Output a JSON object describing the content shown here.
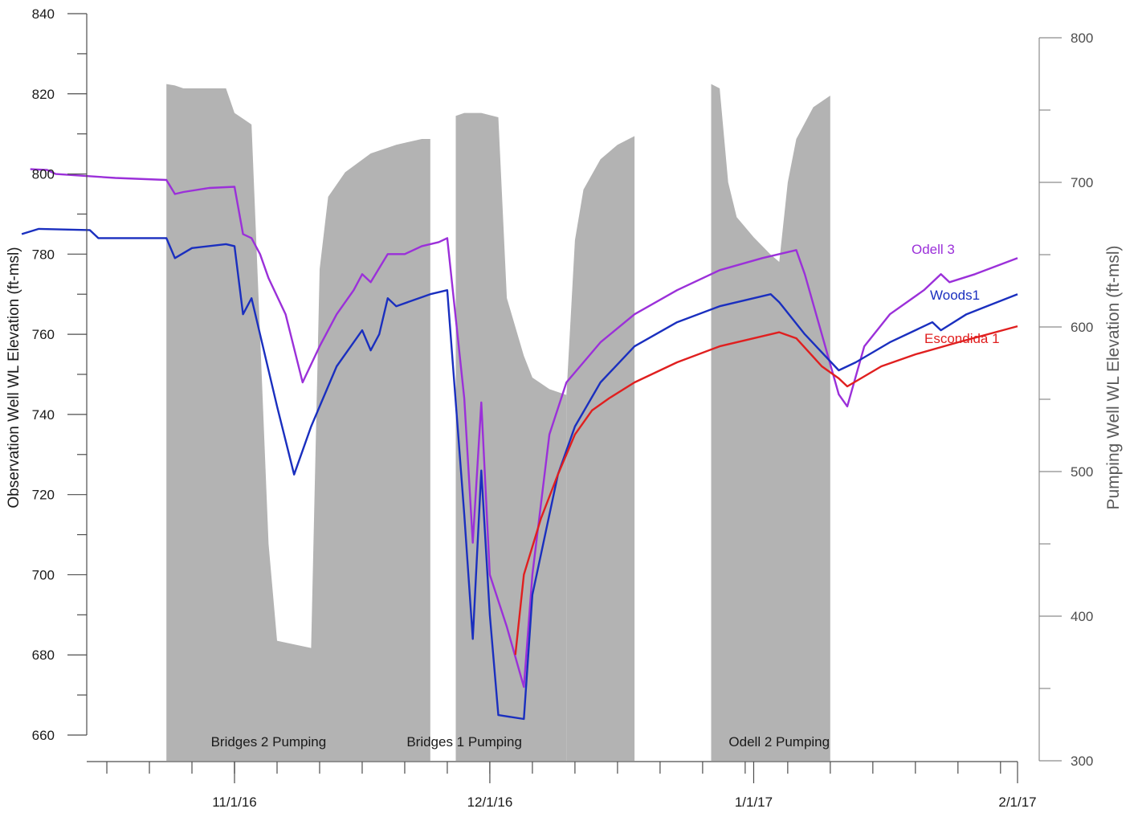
{
  "chart_data": {
    "type": "line",
    "xlabel": "",
    "ylabel": "Observation Well WL Elevation (ft-msl)",
    "y2label": "Pumping Well WL Elevation (ft-msl)",
    "xlim": [
      "2016-10-07",
      "2017-02-01"
    ],
    "ylim": [
      660,
      840
    ],
    "y2lim": [
      300,
      800
    ],
    "grid": false,
    "x_tick_labels": [
      {
        "date": "2016-11-01",
        "label": "11/1/16"
      },
      {
        "date": "2016-12-01",
        "label": "12/1/16"
      },
      {
        "date": "2017-01-01",
        "label": "1/1/17"
      },
      {
        "date": "2017-02-01",
        "label": "2/1/17"
      }
    ],
    "y_ticks": [
      660,
      680,
      700,
      720,
      740,
      760,
      780,
      800,
      820,
      840
    ],
    "y2_ticks": [
      300,
      400,
      500,
      600,
      700,
      800
    ],
    "period_labels": [
      {
        "text": "Bridges 2 Pumping",
        "date": "2016-11-05"
      },
      {
        "text": "Bridges 1 Pumping",
        "date": "2016-11-28"
      },
      {
        "text": "Odell 2 Pumping",
        "date": "2017-01-04"
      }
    ],
    "pumping_colour": "#b3b3b3",
    "pumping_series": {
      "name": "Pumping well WL",
      "axis": "y2",
      "bands": [
        {
          "start": "2016-10-24",
          "end": "2016-11-24",
          "low": 300,
          "top": [
            [
              "2016-10-24",
              768
            ],
            [
              "2016-10-25",
              767
            ],
            [
              "2016-10-26",
              765
            ],
            [
              "2016-10-31",
              765
            ],
            [
              "2016-11-01",
              748
            ],
            [
              "2016-11-02",
              744
            ],
            [
              "2016-11-03",
              740
            ],
            [
              "2016-11-05",
              450
            ],
            [
              "2016-11-06",
              383
            ],
            [
              "2016-11-10",
              378
            ],
            [
              "2016-11-11",
              640
            ],
            [
              "2016-11-12",
              690
            ],
            [
              "2016-11-14",
              707
            ],
            [
              "2016-11-17",
              720
            ],
            [
              "2016-11-20",
              726
            ],
            [
              "2016-11-23",
              730
            ],
            [
              "2016-11-24",
              730
            ]
          ]
        },
        {
          "start": "2016-11-17",
          "end": "2016-11-24",
          "low": 300,
          "top": [
            [
              "2016-11-17",
              300
            ]
          ]
        },
        {
          "start": "2016-11-27",
          "end": "2016-12-08",
          "low": 300,
          "top": [
            [
              "2016-11-27",
              746
            ],
            [
              "2016-11-28",
              748
            ],
            [
              "2016-11-30",
              748
            ],
            [
              "2016-12-02",
              745
            ],
            [
              "2016-12-03",
              620
            ],
            [
              "2016-12-04",
              600
            ],
            [
              "2016-12-05",
              580
            ],
            [
              "2016-12-06",
              565
            ],
            [
              "2016-12-08",
              557
            ],
            [
              "2016-12-10",
              553
            ]
          ]
        },
        {
          "start": "2016-12-10",
          "end": "2016-12-18",
          "low": 300,
          "top": [
            [
              "2016-12-10",
              553
            ],
            [
              "2016-12-11",
              660
            ],
            [
              "2016-12-12",
              695
            ],
            [
              "2016-12-14",
              716
            ],
            [
              "2016-12-16",
              726
            ],
            [
              "2016-12-18",
              732
            ]
          ]
        },
        {
          "start": "2016-12-27",
          "end": "2017-01-10",
          "low": 300,
          "top": [
            [
              "2016-12-27",
              768
            ],
            [
              "2016-12-28",
              765
            ],
            [
              "2016-12-29",
              700
            ],
            [
              "2016-12-30",
              676
            ],
            [
              "2017-01-01",
              662
            ],
            [
              "2017-01-03",
              650
            ],
            [
              "2017-01-04",
              645
            ],
            [
              "2017-01-05",
              700
            ],
            [
              "2017-01-06",
              730
            ],
            [
              "2017-01-08",
              752
            ],
            [
              "2017-01-10",
              760
            ]
          ]
        }
      ]
    },
    "series": [
      {
        "name": "Odell 3",
        "color": "#9b30d9",
        "axis": "y",
        "points": [
          [
            "2016-10-08",
            801.2
          ],
          [
            "2016-10-10",
            801.0
          ],
          [
            "2016-10-11",
            800.0
          ],
          [
            "2016-10-18",
            799.0
          ],
          [
            "2016-10-24",
            798.5
          ],
          [
            "2016-10-25",
            795.0
          ],
          [
            "2016-10-26",
            795.5
          ],
          [
            "2016-10-29",
            796.5
          ],
          [
            "2016-11-01",
            796.8
          ],
          [
            "2016-11-02",
            785.0
          ],
          [
            "2016-11-03",
            784.0
          ],
          [
            "2016-11-04",
            780.0
          ],
          [
            "2016-11-05",
            774.0
          ],
          [
            "2016-11-07",
            765.0
          ],
          [
            "2016-11-09",
            748.0
          ],
          [
            "2016-11-11",
            757.0
          ],
          [
            "2016-11-13",
            765.0
          ],
          [
            "2016-11-15",
            771.0
          ],
          [
            "2016-11-16",
            775.0
          ],
          [
            "2016-11-17",
            773.0
          ],
          [
            "2016-11-19",
            780.0
          ],
          [
            "2016-11-21",
            780.0
          ],
          [
            "2016-11-23",
            782.0
          ],
          [
            "2016-11-25",
            783.0
          ],
          [
            "2016-11-26",
            784.0
          ],
          [
            "2016-11-28",
            744.0
          ],
          [
            "2016-11-29",
            708.0
          ],
          [
            "2016-11-30",
            743.0
          ],
          [
            "2016-12-01",
            700.0
          ],
          [
            "2016-12-03",
            687.0
          ],
          [
            "2016-12-05",
            672.0
          ],
          [
            "2016-12-06",
            700.0
          ],
          [
            "2016-12-08",
            735.0
          ],
          [
            "2016-12-10",
            748.0
          ],
          [
            "2016-12-14",
            758.0
          ],
          [
            "2016-12-18",
            765.0
          ],
          [
            "2016-12-23",
            771.0
          ],
          [
            "2016-12-28",
            776.0
          ],
          [
            "2017-01-02",
            779.0
          ],
          [
            "2017-01-06",
            781.0
          ],
          [
            "2017-01-07",
            775.0
          ],
          [
            "2017-01-09",
            760.0
          ],
          [
            "2017-01-11",
            745.0
          ],
          [
            "2017-01-12",
            742.0
          ],
          [
            "2017-01-14",
            757.0
          ],
          [
            "2017-01-17",
            765.0
          ],
          [
            "2017-01-21",
            771.0
          ],
          [
            "2017-01-23",
            775.0
          ],
          [
            "2017-01-24",
            773.0
          ],
          [
            "2017-01-27",
            775.0
          ],
          [
            "2017-02-01",
            779.0
          ]
        ]
      },
      {
        "name": "Woods1",
        "color": "#1a2fbf",
        "axis": "y",
        "points": [
          [
            "2016-10-07",
            785.0
          ],
          [
            "2016-10-09",
            786.3
          ],
          [
            "2016-10-15",
            786.0
          ],
          [
            "2016-10-16",
            784.0
          ],
          [
            "2016-10-24",
            784.0
          ],
          [
            "2016-10-25",
            779.0
          ],
          [
            "2016-10-27",
            781.5
          ],
          [
            "2016-10-31",
            782.5
          ],
          [
            "2016-11-01",
            782.0
          ],
          [
            "2016-11-02",
            765.0
          ],
          [
            "2016-11-03",
            769.0
          ],
          [
            "2016-11-04",
            760.0
          ],
          [
            "2016-11-06",
            742.0
          ],
          [
            "2016-11-08",
            725.0
          ],
          [
            "2016-11-10",
            737.0
          ],
          [
            "2016-11-13",
            752.0
          ],
          [
            "2016-11-15",
            758.0
          ],
          [
            "2016-11-16",
            761.0
          ],
          [
            "2016-11-17",
            756.0
          ],
          [
            "2016-11-18",
            760.0
          ],
          [
            "2016-11-19",
            769.0
          ],
          [
            "2016-11-20",
            767.0
          ],
          [
            "2016-11-24",
            770.0
          ],
          [
            "2016-11-26",
            771.0
          ],
          [
            "2016-11-28",
            715.0
          ],
          [
            "2016-11-29",
            684.0
          ],
          [
            "2016-11-30",
            726.0
          ],
          [
            "2016-12-01",
            690.0
          ],
          [
            "2016-12-02",
            665.0
          ],
          [
            "2016-12-05",
            664.0
          ],
          [
            "2016-12-06",
            695.0
          ],
          [
            "2016-12-09",
            725.0
          ],
          [
            "2016-12-11",
            737.0
          ],
          [
            "2016-12-14",
            748.0
          ],
          [
            "2016-12-18",
            757.0
          ],
          [
            "2016-12-23",
            763.0
          ],
          [
            "2016-12-28",
            767.0
          ],
          [
            "2017-01-03",
            770.0
          ],
          [
            "2017-01-04",
            768.0
          ],
          [
            "2017-01-07",
            760.0
          ],
          [
            "2017-01-11",
            751.0
          ],
          [
            "2017-01-13",
            753.0
          ],
          [
            "2017-01-17",
            758.0
          ],
          [
            "2017-01-22",
            763.0
          ],
          [
            "2017-01-23",
            761.0
          ],
          [
            "2017-01-26",
            765.0
          ],
          [
            "2017-02-01",
            770.0
          ]
        ]
      },
      {
        "name": "Escondida 1",
        "color": "#e01f1f",
        "axis": "y",
        "points": [
          [
            "2016-12-04",
            680.0
          ],
          [
            "2016-12-05",
            700.0
          ],
          [
            "2016-12-07",
            714.0
          ],
          [
            "2016-12-09",
            725.0
          ],
          [
            "2016-12-11",
            735.0
          ],
          [
            "2016-12-13",
            741.0
          ],
          [
            "2016-12-15",
            744.0
          ],
          [
            "2016-12-18",
            748.0
          ],
          [
            "2016-12-23",
            753.0
          ],
          [
            "2016-12-28",
            757.0
          ],
          [
            "2017-01-01",
            759.0
          ],
          [
            "2017-01-04",
            760.5
          ],
          [
            "2017-01-06",
            759.0
          ],
          [
            "2017-01-09",
            752.0
          ],
          [
            "2017-01-11",
            749.0
          ],
          [
            "2017-01-12",
            747.0
          ],
          [
            "2017-01-16",
            752.0
          ],
          [
            "2017-01-20",
            755.0
          ],
          [
            "2017-01-25",
            758.0
          ],
          [
            "2017-02-01",
            762.0
          ]
        ]
      }
    ]
  }
}
